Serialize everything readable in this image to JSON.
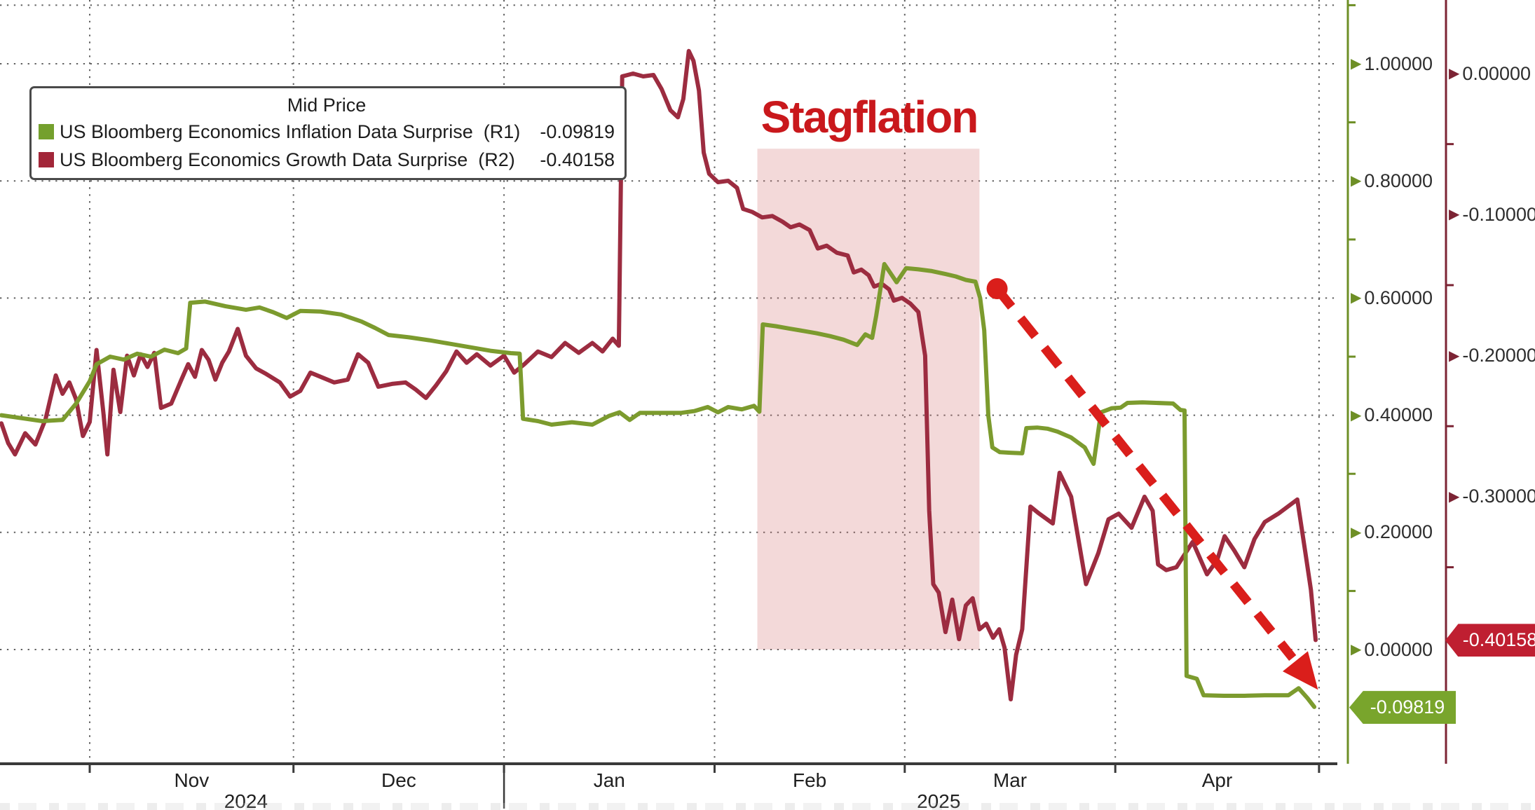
{
  "legend": {
    "title": "Mid Price",
    "items": [
      {
        "label": "US Bloomberg Economics Inflation Data Surprise  (R1)",
        "value": "-0.09819",
        "swatch": "#74a02d"
      },
      {
        "label": "US Bloomberg Economics Growth Data Surprise  (R2)",
        "value": "-0.40158",
        "swatch": "#a22639"
      }
    ]
  },
  "annotation": {
    "text": "Stagflation",
    "color": "#c9181c"
  },
  "x_axis": {
    "unit": "days since 2024-10-19",
    "months": [
      {
        "label": "Nov",
        "start_day": 13
      },
      {
        "label": "Dec",
        "start_day": 43
      },
      {
        "label": "Jan",
        "start_day": 74
      },
      {
        "label": "Feb",
        "start_day": 105
      },
      {
        "label": "Mar",
        "start_day": 133
      },
      {
        "label": "Apr",
        "start_day": 164
      }
    ],
    "end_day": 194,
    "years": [
      {
        "label": "2024",
        "center_day": 36
      },
      {
        "label": "2025",
        "center_day": 138
      }
    ]
  },
  "y_axis_inflation": {
    "position": "inner-right",
    "axis_color": "#6e8f26",
    "label_color": "#2e2e2e",
    "ticks": [
      {
        "label": "1.00000",
        "value": 1.0
      },
      {
        "label": "0.80000",
        "value": 0.8
      },
      {
        "label": "0.60000",
        "value": 0.6
      },
      {
        "label": "0.40000",
        "value": 0.4
      },
      {
        "label": "0.20000",
        "value": 0.2
      },
      {
        "label": "0.00000",
        "value": 0.0
      }
    ],
    "minor_tick_values": [
      1.1,
      0.9,
      0.7,
      0.5,
      0.3,
      0.1
    ],
    "badge": {
      "label": "-0.09819",
      "value": -0.09819,
      "bg": "#79a52c"
    }
  },
  "y_axis_growth": {
    "position": "outer-right",
    "axis_color": "#7c2434",
    "label_color": "#2e2e2e",
    "ticks": [
      {
        "label": "0.00000",
        "value": 0.0
      },
      {
        "label": "-0.10000",
        "value": -0.1
      },
      {
        "label": "-0.20000",
        "value": -0.2
      },
      {
        "label": "-0.30000",
        "value": -0.3
      }
    ],
    "minor_tick_values": [
      -0.05,
      -0.15,
      -0.25,
      -0.35,
      -0.45
    ],
    "badge": {
      "label": "-0.40158",
      "value": -0.40158,
      "bg": "#bf1f31"
    }
  },
  "chart_data": {
    "type": "line",
    "x_unit": "days since 2024-10-19",
    "grid": {
      "h_values_R1": [
        1.1,
        1.0,
        0.8,
        0.6,
        0.4,
        0.2,
        0.0
      ],
      "style": "dotted"
    },
    "axis_range_R1": [
      -0.27,
      1.11
    ],
    "axis_range_R2": [
      -0.49,
      0.052
    ],
    "band": {
      "day_start": 111.3,
      "day_end": 144.0,
      "top_R1": 0.855,
      "bottom_R1": 0.0,
      "color": "rgba(213,118,118,0.28)"
    },
    "trend_arrow": {
      "from_day": 146.6,
      "from_R1": 0.616,
      "to_day": 190.5,
      "to_R1": -0.02,
      "color": "#da1e1b"
    },
    "series": [
      {
        "name": "US Bloomberg Economics Inflation Data Surprise",
        "axis": "R1",
        "color": "#7c9b2e",
        "last_value": -0.09819,
        "points": [
          [
            0,
            0.4
          ],
          [
            3,
            0.395
          ],
          [
            6,
            0.39
          ],
          [
            9,
            0.392
          ],
          [
            11,
            0.42
          ],
          [
            13,
            0.458
          ],
          [
            14,
            0.487
          ],
          [
            16,
            0.5
          ],
          [
            18,
            0.495
          ],
          [
            20,
            0.505
          ],
          [
            22,
            0.5
          ],
          [
            24,
            0.512
          ],
          [
            26,
            0.506
          ],
          [
            27.2,
            0.514
          ],
          [
            27.8,
            0.592
          ],
          [
            30,
            0.594
          ],
          [
            33,
            0.586
          ],
          [
            36,
            0.58
          ],
          [
            38,
            0.584
          ],
          [
            40,
            0.576
          ],
          [
            42,
            0.566
          ],
          [
            44,
            0.578
          ],
          [
            47,
            0.577
          ],
          [
            50,
            0.572
          ],
          [
            53,
            0.56
          ],
          [
            55,
            0.549
          ],
          [
            57,
            0.537
          ],
          [
            60,
            0.533
          ],
          [
            63,
            0.528
          ],
          [
            66,
            0.522
          ],
          [
            69,
            0.516
          ],
          [
            72,
            0.51
          ],
          [
            75,
            0.506
          ],
          [
            76.3,
            0.505
          ],
          [
            76.8,
            0.394
          ],
          [
            79,
            0.39
          ],
          [
            81,
            0.384
          ],
          [
            84,
            0.388
          ],
          [
            87,
            0.384
          ],
          [
            89.5,
            0.399
          ],
          [
            91,
            0.405
          ],
          [
            92.5,
            0.392
          ],
          [
            94,
            0.404
          ],
          [
            97,
            0.404
          ],
          [
            100,
            0.404
          ],
          [
            102,
            0.407
          ],
          [
            104,
            0.414
          ],
          [
            105.5,
            0.405
          ],
          [
            107,
            0.414
          ],
          [
            109,
            0.41
          ],
          [
            110.8,
            0.416
          ],
          [
            111.6,
            0.406
          ],
          [
            112.1,
            0.555
          ],
          [
            114,
            0.552
          ],
          [
            116,
            0.548
          ],
          [
            118,
            0.544
          ],
          [
            120,
            0.54
          ],
          [
            122,
            0.535
          ],
          [
            124,
            0.529
          ],
          [
            126,
            0.52
          ],
          [
            127.2,
            0.538
          ],
          [
            128.2,
            0.532
          ],
          [
            128.8,
            0.57
          ],
          [
            130,
            0.658
          ],
          [
            131.8,
            0.627
          ],
          [
            133.2,
            0.651
          ],
          [
            135,
            0.649
          ],
          [
            137,
            0.646
          ],
          [
            139,
            0.641
          ],
          [
            140.5,
            0.637
          ],
          [
            142,
            0.631
          ],
          [
            143.4,
            0.628
          ],
          [
            144.1,
            0.6
          ],
          [
            144.7,
            0.545
          ],
          [
            145.3,
            0.4
          ],
          [
            145.9,
            0.345
          ],
          [
            147,
            0.337
          ],
          [
            148.5,
            0.336
          ],
          [
            150.3,
            0.335
          ],
          [
            150.9,
            0.378
          ],
          [
            152.5,
            0.379
          ],
          [
            154,
            0.377
          ],
          [
            155.5,
            0.372
          ],
          [
            157.5,
            0.362
          ],
          [
            159.5,
            0.345
          ],
          [
            160.8,
            0.317
          ],
          [
            161.9,
            0.405
          ],
          [
            163.5,
            0.412
          ],
          [
            164.8,
            0.413
          ],
          [
            165.8,
            0.421
          ],
          [
            168,
            0.422
          ],
          [
            170,
            0.421
          ],
          [
            172.5,
            0.42
          ],
          [
            173.6,
            0.409
          ],
          [
            174.2,
            0.408
          ],
          [
            174.5,
            -0.045
          ],
          [
            176,
            -0.05
          ],
          [
            177,
            -0.078
          ],
          [
            180,
            -0.079
          ],
          [
            183,
            -0.079
          ],
          [
            186,
            -0.078
          ],
          [
            189.5,
            -0.078
          ],
          [
            191,
            -0.066
          ],
          [
            192.3,
            -0.083
          ],
          [
            193.3,
            -0.098
          ]
        ]
      },
      {
        "name": "US Bloomberg Economics Growth Data Surprise",
        "axis": "R2",
        "color": "#9c2c40",
        "last_value": -0.40158,
        "points": [
          [
            0,
            -0.248
          ],
          [
            1,
            -0.262
          ],
          [
            2,
            -0.27
          ],
          [
            3.5,
            -0.255
          ],
          [
            5,
            -0.263
          ],
          [
            6.5,
            -0.245
          ],
          [
            8,
            -0.214
          ],
          [
            9,
            -0.227
          ],
          [
            10,
            -0.219
          ],
          [
            11,
            -0.231
          ],
          [
            12,
            -0.257
          ],
          [
            13,
            -0.247
          ],
          [
            14,
            -0.196
          ],
          [
            15,
            -0.24
          ],
          [
            15.6,
            -0.27
          ],
          [
            16.5,
            -0.21
          ],
          [
            17.5,
            -0.24
          ],
          [
            18.5,
            -0.2
          ],
          [
            19.5,
            -0.214
          ],
          [
            20.5,
            -0.199
          ],
          [
            21.5,
            -0.208
          ],
          [
            22.5,
            -0.198
          ],
          [
            23.5,
            -0.237
          ],
          [
            25,
            -0.234
          ],
          [
            26.5,
            -0.217
          ],
          [
            27.5,
            -0.206
          ],
          [
            28.5,
            -0.215
          ],
          [
            29.5,
            -0.196
          ],
          [
            30.5,
            -0.203
          ],
          [
            31.5,
            -0.217
          ],
          [
            32.5,
            -0.205
          ],
          [
            33.5,
            -0.197
          ],
          [
            34.8,
            -0.181
          ],
          [
            36,
            -0.2
          ],
          [
            37.5,
            -0.209
          ],
          [
            39,
            -0.213
          ],
          [
            41,
            -0.219
          ],
          [
            42.5,
            -0.229
          ],
          [
            44,
            -0.225
          ],
          [
            45.5,
            -0.212
          ],
          [
            47,
            -0.215
          ],
          [
            49,
            -0.219
          ],
          [
            51,
            -0.217
          ],
          [
            52.5,
            -0.199
          ],
          [
            54,
            -0.205
          ],
          [
            55.5,
            -0.222
          ],
          [
            57.5,
            -0.22
          ],
          [
            59.5,
            -0.219
          ],
          [
            61,
            -0.224
          ],
          [
            62.5,
            -0.23
          ],
          [
            64,
            -0.221
          ],
          [
            65.5,
            -0.211
          ],
          [
            67,
            -0.197
          ],
          [
            68.5,
            -0.205
          ],
          [
            70,
            -0.199
          ],
          [
            72,
            -0.207
          ],
          [
            74,
            -0.2
          ],
          [
            75.5,
            -0.212
          ],
          [
            77,
            -0.206
          ],
          [
            79,
            -0.197
          ],
          [
            81,
            -0.201
          ],
          [
            83,
            -0.191
          ],
          [
            85,
            -0.198
          ],
          [
            87,
            -0.191
          ],
          [
            88.5,
            -0.197
          ],
          [
            90,
            -0.188
          ],
          [
            90.9,
            -0.193
          ],
          [
            91.4,
            -0.002
          ],
          [
            93,
            0.0
          ],
          [
            94.5,
            -0.002
          ],
          [
            96,
            -0.001
          ],
          [
            97.2,
            -0.011
          ],
          [
            98.5,
            -0.026
          ],
          [
            99.6,
            -0.031
          ],
          [
            100.4,
            -0.018
          ],
          [
            101.2,
            0.016
          ],
          [
            101.9,
            0.009
          ],
          [
            102.7,
            -0.012
          ],
          [
            103.4,
            -0.056
          ],
          [
            104.2,
            -0.071
          ],
          [
            105.5,
            -0.077
          ],
          [
            107,
            -0.076
          ],
          [
            108.3,
            -0.081
          ],
          [
            109.2,
            -0.096
          ],
          [
            110.5,
            -0.098
          ],
          [
            112,
            -0.102
          ],
          [
            113.5,
            -0.101
          ],
          [
            115,
            -0.105
          ],
          [
            116.2,
            -0.109
          ],
          [
            117.5,
            -0.107
          ],
          [
            119,
            -0.111
          ],
          [
            120.2,
            -0.124
          ],
          [
            121.5,
            -0.122
          ],
          [
            123,
            -0.127
          ],
          [
            124.6,
            -0.129
          ],
          [
            125.5,
            -0.141
          ],
          [
            126.6,
            -0.139
          ],
          [
            127.7,
            -0.143
          ],
          [
            128.5,
            -0.151
          ],
          [
            129.6,
            -0.149
          ],
          [
            130.7,
            -0.153
          ],
          [
            131.4,
            -0.161
          ],
          [
            132.6,
            -0.159
          ],
          [
            133.8,
            -0.163
          ],
          [
            135,
            -0.169
          ],
          [
            136,
            -0.2
          ],
          [
            136.6,
            -0.31
          ],
          [
            137.2,
            -0.362
          ],
          [
            138,
            -0.368
          ],
          [
            139,
            -0.396
          ],
          [
            140,
            -0.373
          ],
          [
            141,
            -0.401
          ],
          [
            142,
            -0.377
          ],
          [
            143,
            -0.372
          ],
          [
            144,
            -0.394
          ],
          [
            145,
            -0.39
          ],
          [
            146,
            -0.4
          ],
          [
            146.9,
            -0.394
          ],
          [
            147.7,
            -0.407
          ],
          [
            148.6,
            -0.4436
          ],
          [
            149.4,
            -0.412
          ],
          [
            150.3,
            -0.394
          ],
          [
            151.5,
            -0.307
          ],
          [
            152.8,
            -0.312
          ],
          [
            154.8,
            -0.319
          ],
          [
            155.8,
            -0.283
          ],
          [
            157.5,
            -0.3
          ],
          [
            159.7,
            -0.362
          ],
          [
            161.5,
            -0.34
          ],
          [
            163,
            -0.316
          ],
          [
            164.5,
            -0.312
          ],
          [
            166.4,
            -0.322
          ],
          [
            168.3,
            -0.3
          ],
          [
            169.5,
            -0.31
          ],
          [
            170.3,
            -0.348
          ],
          [
            171.5,
            -0.352
          ],
          [
            173,
            -0.35
          ],
          [
            175.4,
            -0.332
          ],
          [
            177.5,
            -0.355
          ],
          [
            179,
            -0.345
          ],
          [
            180.1,
            -0.328
          ],
          [
            181.5,
            -0.338
          ],
          [
            183,
            -0.35
          ],
          [
            184.5,
            -0.33
          ],
          [
            186,
            -0.318
          ],
          [
            188,
            -0.312
          ],
          [
            190.8,
            -0.302
          ],
          [
            192,
            -0.34
          ],
          [
            192.8,
            -0.366
          ],
          [
            193.5,
            -0.4016
          ]
        ]
      }
    ]
  }
}
